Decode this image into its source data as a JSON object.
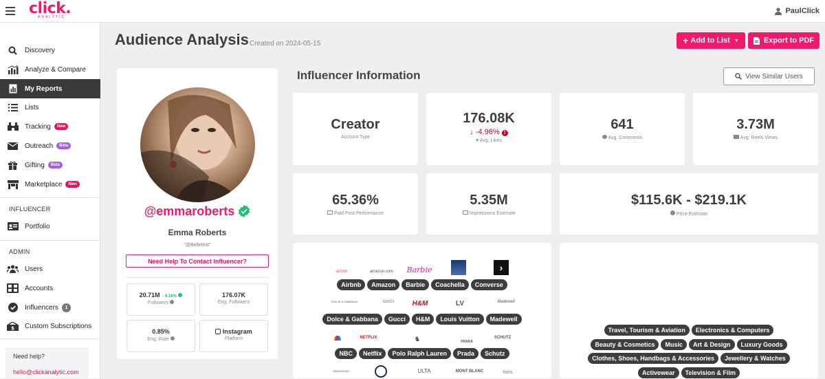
{
  "topbar": {
    "logo": "click.",
    "logo_sub": "ANALYTIC",
    "user": "PaulClick"
  },
  "sidebar": {
    "items": [
      {
        "label": "Discovery",
        "icon": "search-icon"
      },
      {
        "label": "Analyze & Compare",
        "icon": "chart-icon"
      },
      {
        "label": "My Reports",
        "icon": "report-icon",
        "active": true
      },
      {
        "label": "Lists",
        "icon": "list-icon"
      },
      {
        "label": "Tracking",
        "icon": "binoculars-icon",
        "badge": "New"
      },
      {
        "label": "Outreach",
        "icon": "envelope-icon",
        "badge": "Beta"
      },
      {
        "label": "Gifting",
        "icon": "gift-icon",
        "badge": "Beta"
      },
      {
        "label": "Marketplace",
        "icon": "store-icon",
        "badge": "New"
      }
    ],
    "section_influencer": "INFLUENCER",
    "portfolio": "Portfolio",
    "section_admin": "ADMIN",
    "admin_items": [
      {
        "label": "Users",
        "icon": "users-icon"
      },
      {
        "label": "Accounts",
        "icon": "accounts-icon"
      },
      {
        "label": "Influencers",
        "icon": "check-badge-icon",
        "badge": "1"
      },
      {
        "label": "Custom Subscriptions",
        "icon": "money-icon"
      }
    ],
    "help_title": "Need help?",
    "help_email": "hello@clickanalytic.com"
  },
  "header": {
    "title": "Audience Analysis",
    "created": "Created on 2024-05-15",
    "add_to_list": "Add to List",
    "export_pdf": "Export to PDF"
  },
  "profile": {
    "handle": "@emmaroberts",
    "name": "Emma Roberts",
    "alias": "\"@Belletrist\"",
    "contact": "Need Help To Contact Influencer?",
    "followers": "20.71M",
    "followers_change": "0.16%",
    "followers_label": "Followers",
    "eng_followers": "176.07K",
    "eng_followers_label": "Eng. Followers",
    "eng_rate": "0.85%",
    "eng_rate_label": "Eng. Rate",
    "platform": "Instagram",
    "platform_label": "Platform"
  },
  "info": {
    "title": "Influencer Information",
    "view_similar": "View Similar Users",
    "account_type": "Creator",
    "account_type_label": "Account Type",
    "avg_likes": "176.08K",
    "avg_likes_change": "-4.96%",
    "avg_likes_label": "Avg. Likes",
    "avg_comments": "641",
    "avg_comments_label": "Avg. Comments",
    "avg_reels": "3.73M",
    "avg_reels_label": "Avg. Reels Views",
    "paid_post": "65.36%",
    "paid_post_label": "Paid Post Performance",
    "impressions": "5.35M",
    "impressions_label": "Impressions Estimate",
    "price": "$115.6K - $219.1K",
    "price_label": "Price Estimate"
  },
  "brands": {
    "row1": [
      "Airbnb",
      "Amazon",
      "Barbie",
      "Coachella",
      "Converse"
    ],
    "row2": [
      "Dolce & Gabbana",
      "Gucci",
      "H&M",
      "Louis Vuitton",
      "Madewell"
    ],
    "row3": [
      "NBC",
      "Netflix",
      "Polo Ralph Lauren",
      "Prada",
      "Schutz"
    ],
    "logos1": [
      "airbnb",
      "amazon.com",
      "Barbie",
      "",
      ""
    ],
    "logos2": [
      "DOLCE & GABBANA",
      "GUCCI",
      "H&M",
      "LV",
      "Madewell"
    ],
    "logos3": [
      "",
      "NETFLIX",
      "",
      "PRADA",
      "SCHUTZ"
    ],
    "logos4": [
      "SWAROVSKI",
      "",
      "ULTA",
      "MONT BLANC",
      "TOD'S"
    ]
  },
  "interests": {
    "row1": [
      "Travel, Tourism & Aviation",
      "Electronics & Computers"
    ],
    "row2": [
      "Beauty & Cosmetics",
      "Music",
      "Art & Design",
      "Luxury Goods"
    ],
    "row3": [
      "Clothes, Shoes, Handbags & Accessories",
      "Jewellery & Watches"
    ],
    "row4": [
      "Activewear",
      "Television & Film"
    ]
  },
  "colors": {
    "brand": "#f0196e",
    "chip": "#3d3d3d",
    "positive": "#1fbf75",
    "negative": "#d0021b"
  }
}
